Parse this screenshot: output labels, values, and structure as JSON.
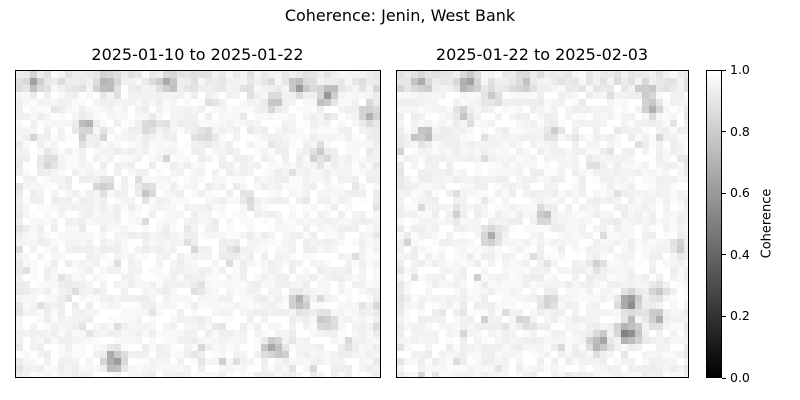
{
  "chart_data": {
    "type": "heatmap",
    "title": "Coherence: Jenin, West Bank",
    "panels": [
      {
        "title": "2025-01-10 to 2025-01-22",
        "dark_spots": [
          [
            0.25,
            0.04,
            0.35
          ],
          [
            0.42,
            0.04,
            0.3
          ],
          [
            0.05,
            0.04,
            0.25
          ],
          [
            0.78,
            0.05,
            0.3
          ],
          [
            0.86,
            0.08,
            0.35
          ],
          [
            0.97,
            0.14,
            0.3
          ],
          [
            0.19,
            0.18,
            0.3
          ],
          [
            0.37,
            0.18,
            0.2
          ],
          [
            0.71,
            0.1,
            0.25
          ],
          [
            0.52,
            0.21,
            0.2
          ],
          [
            0.24,
            0.37,
            0.2
          ],
          [
            0.36,
            0.39,
            0.2
          ],
          [
            0.64,
            0.42,
            0.15
          ],
          [
            0.83,
            0.26,
            0.15
          ],
          [
            0.09,
            0.3,
            0.15
          ],
          [
            0.48,
            0.5,
            0.1
          ],
          [
            0.6,
            0.58,
            0.1
          ],
          [
            0.78,
            0.75,
            0.35
          ],
          [
            0.85,
            0.81,
            0.25
          ],
          [
            0.71,
            0.9,
            0.35
          ],
          [
            0.27,
            0.94,
            0.4
          ],
          [
            0.92,
            0.89,
            0.15
          ],
          [
            0.14,
            0.72,
            0.1
          ],
          [
            0.5,
            0.7,
            0.1
          ]
        ]
      },
      {
        "title": "2025-01-22 to 2025-02-03",
        "dark_spots": [
          [
            0.24,
            0.04,
            0.3
          ],
          [
            0.08,
            0.04,
            0.25
          ],
          [
            0.43,
            0.04,
            0.2
          ],
          [
            0.85,
            0.07,
            0.3
          ],
          [
            0.87,
            0.12,
            0.25
          ],
          [
            0.09,
            0.21,
            0.3
          ],
          [
            0.22,
            0.14,
            0.2
          ],
          [
            0.33,
            0.09,
            0.2
          ],
          [
            0.53,
            0.2,
            0.15
          ],
          [
            0.5,
            0.47,
            0.25
          ],
          [
            0.32,
            0.54,
            0.3
          ],
          [
            0.96,
            0.57,
            0.2
          ],
          [
            0.68,
            0.63,
            0.15
          ],
          [
            0.79,
            0.75,
            0.45
          ],
          [
            0.79,
            0.85,
            0.5
          ],
          [
            0.69,
            0.88,
            0.4
          ],
          [
            0.88,
            0.8,
            0.3
          ],
          [
            0.52,
            0.75,
            0.2
          ],
          [
            0.44,
            0.82,
            0.15
          ],
          [
            0.89,
            0.72,
            0.2
          ],
          [
            0.2,
            0.46,
            0.1
          ],
          [
            0.67,
            0.3,
            0.1
          ]
        ]
      }
    ],
    "colorbar": {
      "label": "Coherence",
      "range": [
        0.0,
        1.0
      ],
      "ticks": [
        "0.0",
        "0.2",
        "0.4",
        "0.6",
        "0.8",
        "1.0"
      ],
      "colormap": "gray"
    }
  }
}
